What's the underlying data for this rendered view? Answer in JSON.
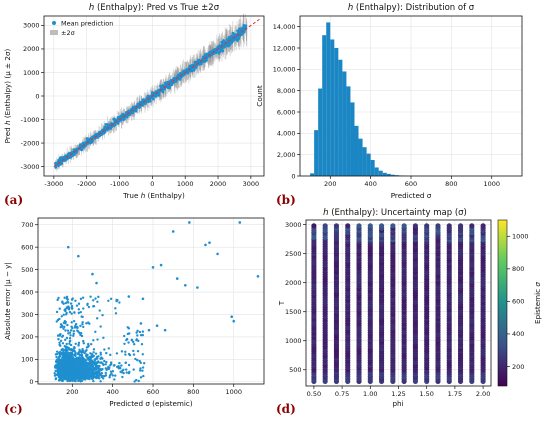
{
  "panel_labels": [
    "(a)",
    "(b)",
    "(c)",
    "(d)"
  ],
  "colors": {
    "points": "#1f8fcf",
    "band": "#8f8f8f",
    "bars": "#1b86c4",
    "diagonal": "#e03030",
    "grid": "#e3e3e3",
    "panel_label": "#8b0000"
  },
  "chart_data": [
    {
      "id": "a",
      "type": "scatter",
      "title_prefix": "h",
      "title_rest": " (Enthalpy): Pred vs True ±2σ",
      "xlabel_pre": "True ",
      "xlabel_it": "h",
      "xlabel_post": " (Enthalpy)",
      "ylabel_pre": "Pred ",
      "ylabel_it": "h",
      "ylabel_post": " (Enthalpy) (μ ± 2σ)",
      "legend": [
        "Mean prediction",
        "±2σ"
      ],
      "xlim": [
        -3300,
        3400
      ],
      "ylim": [
        -3400,
        3400
      ],
      "xticks": [
        -3000,
        -2000,
        -1000,
        0,
        1000,
        2000,
        3000
      ],
      "yticks": [
        -3000,
        -2000,
        -1000,
        0,
        1000,
        2000,
        3000
      ],
      "diagonal": [
        [
          -3000,
          -3000
        ],
        [
          3300,
          3300
        ]
      ],
      "band_halfwidth": [
        [
          -3000,
          180
        ],
        [
          0,
          300
        ],
        [
          3000,
          450
        ]
      ],
      "mean_spread": 90,
      "grid": true
    },
    {
      "id": "b",
      "type": "bar",
      "title_prefix": "h",
      "title_rest": " (Enthalpy): Distribution of σ",
      "xlabel": "Predicted σ",
      "ylabel": "Count",
      "xlim": [
        50,
        1150
      ],
      "ylim": [
        0,
        15000
      ],
      "xticks": [
        200,
        400,
        600,
        800,
        1000
      ],
      "yticks": [
        0,
        2000,
        4000,
        6000,
        8000,
        10000,
        12000,
        14000
      ],
      "ytick_labels": [
        "0",
        "2,000",
        "4,000",
        "6,000",
        "8,000",
        "10,000",
        "12,000",
        "14,000"
      ],
      "bin_width": 20,
      "bin_start": 100,
      "values": [
        250,
        4300,
        8200,
        13200,
        14400,
        12800,
        12000,
        10900,
        9800,
        8400,
        6900,
        4700,
        3500,
        2700,
        2100,
        1500,
        800,
        500,
        300,
        200,
        120,
        80,
        50,
        30,
        20,
        10,
        8,
        6,
        5,
        4,
        3,
        2
      ],
      "grid": true
    },
    {
      "id": "c",
      "type": "scatter",
      "xlabel": "Predicted σ (epistemic)",
      "ylabel": "Absolute error |μ − y|",
      "xlim": [
        30,
        1150
      ],
      "ylim": [
        -10,
        730
      ],
      "xticks": [
        200,
        400,
        600,
        800,
        1000
      ],
      "yticks": [
        0,
        100,
        200,
        300,
        400,
        500,
        600,
        700
      ],
      "outliers": [
        [
          1030,
          710
        ],
        [
          1120,
          470
        ],
        [
          780,
          710
        ],
        [
          700,
          670
        ],
        [
          880,
          620
        ],
        [
          860,
          610
        ],
        [
          920,
          570
        ],
        [
          600,
          510
        ],
        [
          640,
          520
        ],
        [
          720,
          460
        ],
        [
          760,
          430
        ],
        [
          820,
          420
        ],
        [
          550,
          370
        ],
        [
          990,
          290
        ],
        [
          1000,
          270
        ],
        [
          620,
          250
        ],
        [
          660,
          230
        ],
        [
          540,
          260
        ],
        [
          580,
          230
        ],
        [
          180,
          600
        ],
        [
          230,
          560
        ],
        [
          300,
          480
        ],
        [
          320,
          440
        ],
        [
          480,
          380
        ],
        [
          420,
          360
        ]
      ],
      "grid": true
    },
    {
      "id": "d",
      "type": "scatter",
      "title_prefix": "h",
      "title_rest": " (Enthalpy): Uncertainty map (σ)",
      "xlabel": "phi",
      "ylabel": "T",
      "colorbar_label": "Epistemic σ",
      "xlim": [
        0.43,
        2.07
      ],
      "ylim": [
        220,
        3080
      ],
      "xticks": [
        0.5,
        0.75,
        1.0,
        1.25,
        1.5,
        1.75,
        2.0
      ],
      "xtick_labels": [
        "0.50",
        "0.75",
        "1.00",
        "1.25",
        "1.50",
        "1.75",
        "2.00"
      ],
      "yticks": [
        500,
        1000,
        1500,
        2000,
        2500,
        3000
      ],
      "phi_columns": [
        0.5,
        0.6,
        0.7,
        0.8,
        0.9,
        1.0,
        1.1,
        1.2,
        1.3,
        1.4,
        1.5,
        1.6,
        1.7,
        1.8,
        1.9,
        2.0
      ],
      "T_range": [
        300,
        3000
      ],
      "colorbar_range": [
        80,
        1100
      ],
      "colorbar_ticks": [
        200,
        400,
        600,
        800,
        1000
      ],
      "grid": true
    }
  ]
}
